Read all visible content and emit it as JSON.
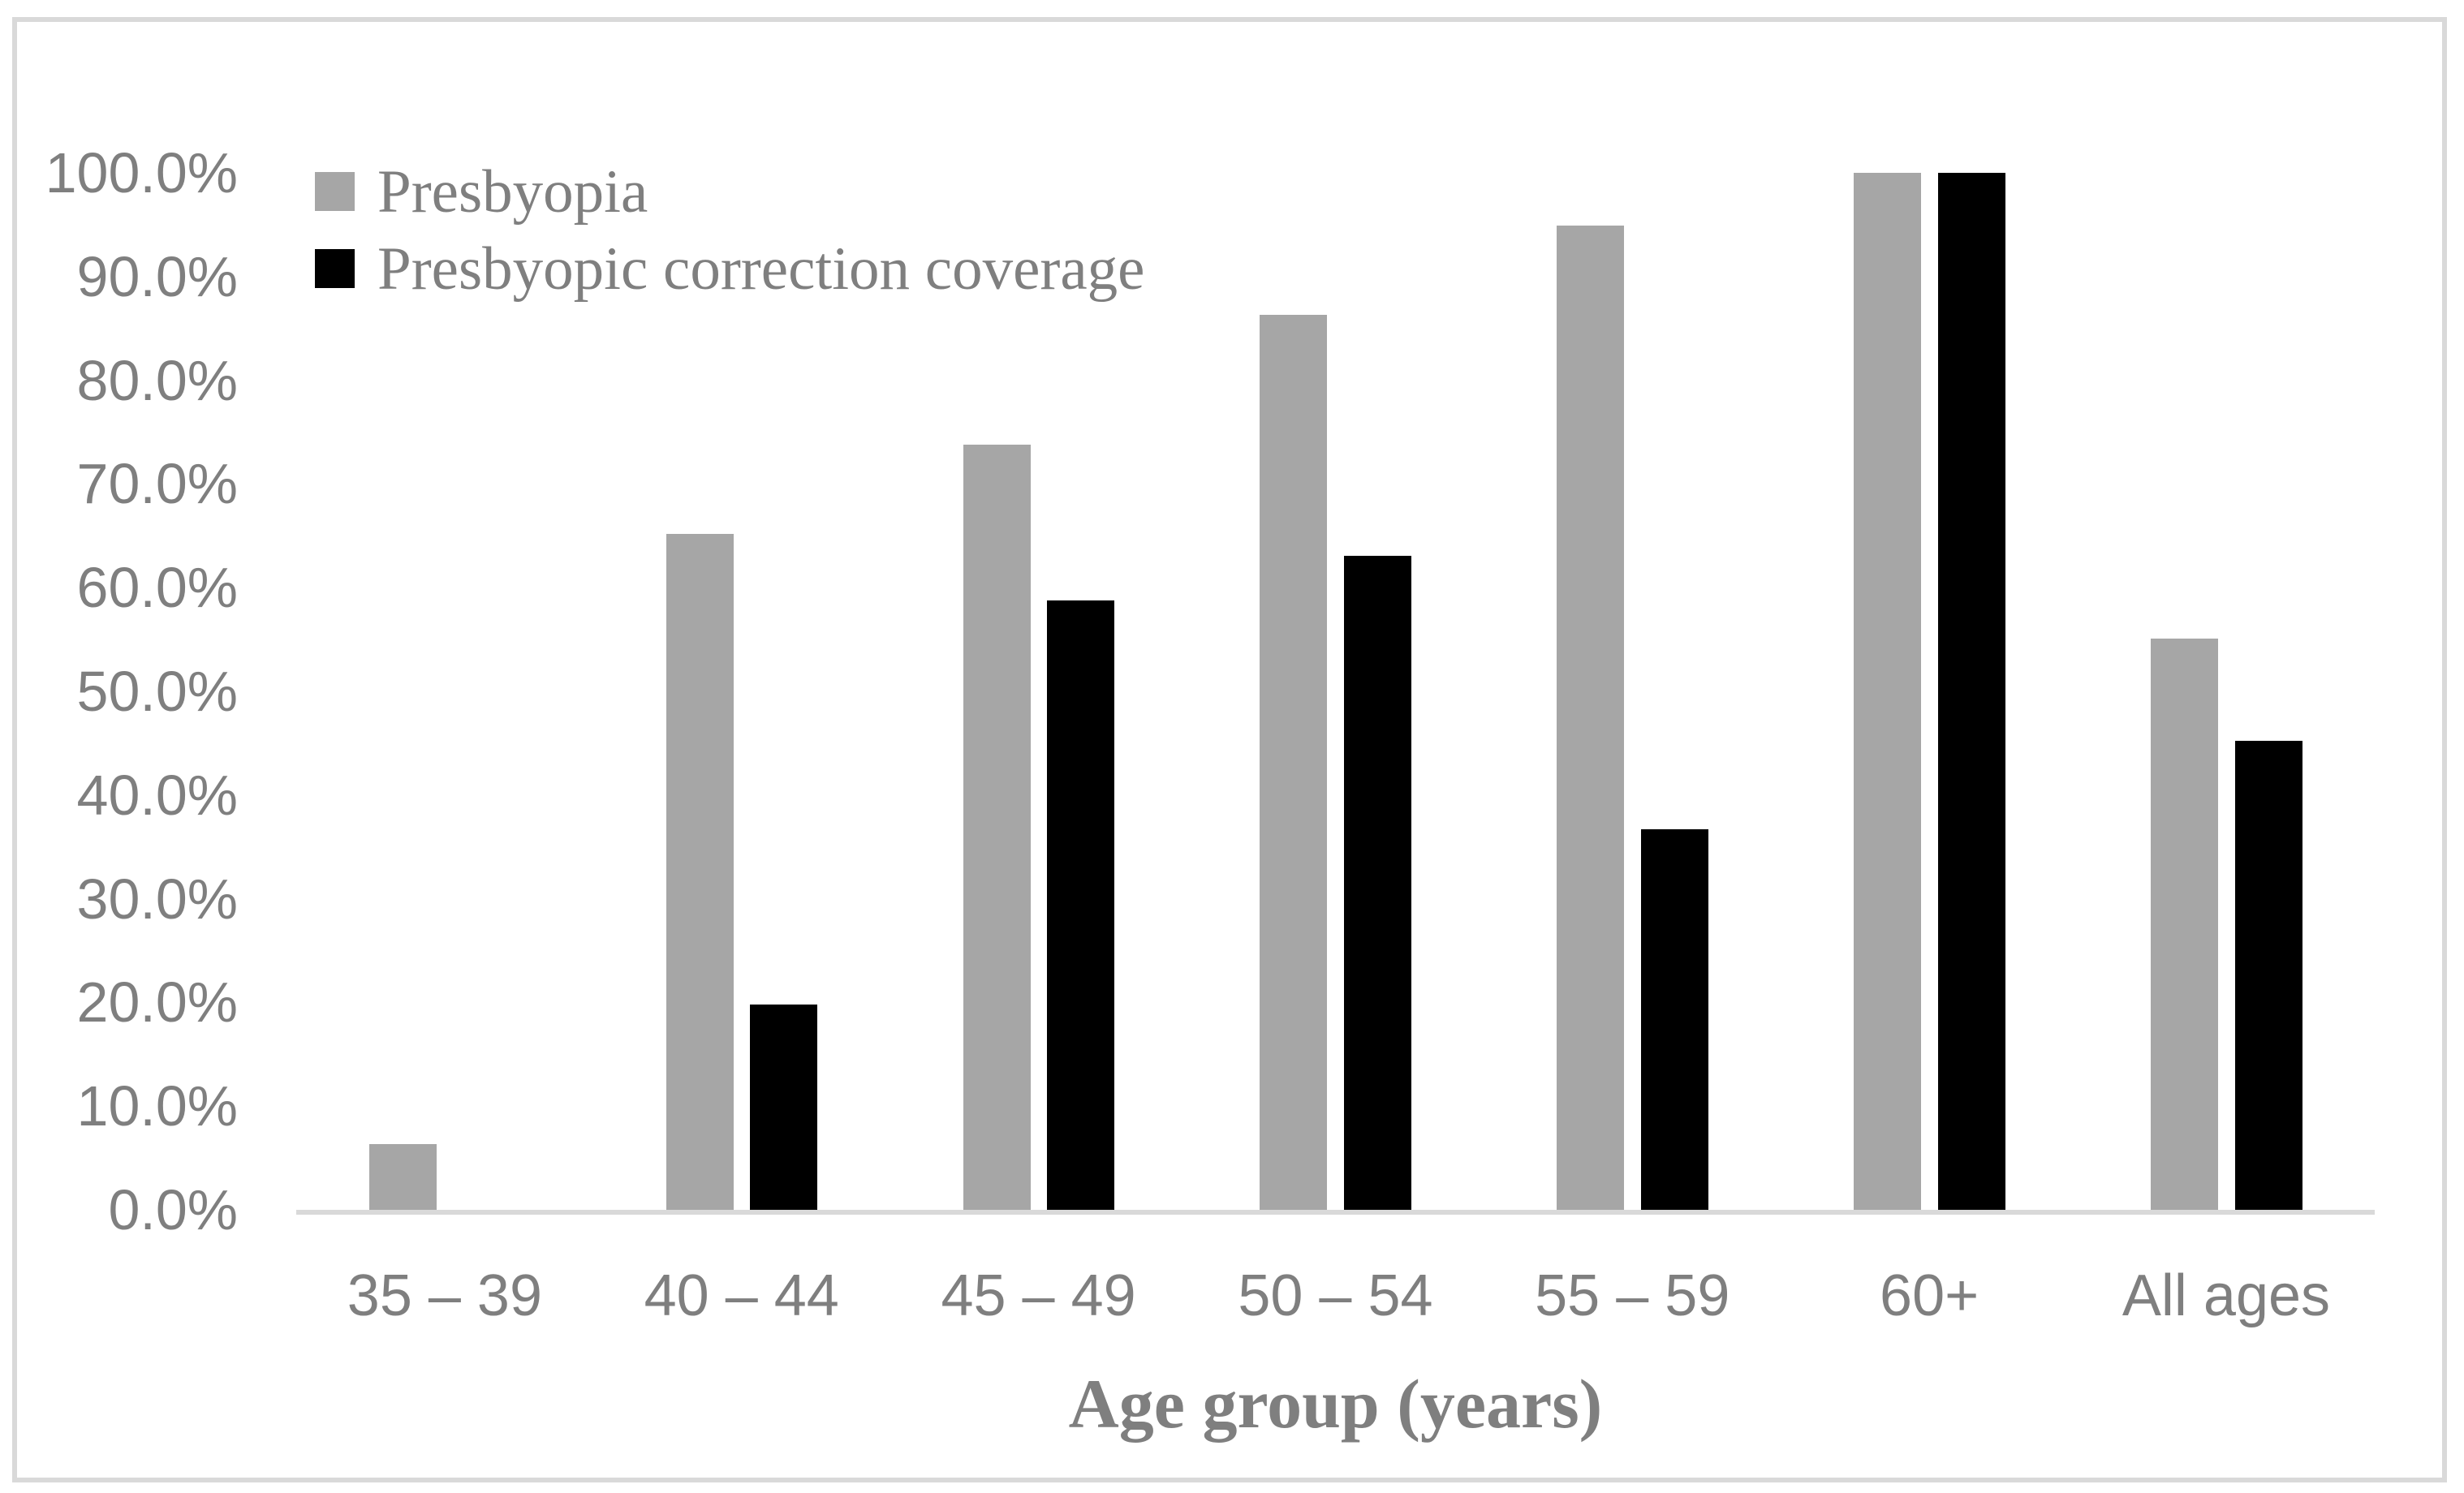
{
  "chart_data": {
    "type": "bar",
    "title": "",
    "xlabel": "Age group (years)",
    "ylabel": "",
    "categories": [
      "35 – 39",
      "40 – 44",
      "45 – 49",
      "50 – 54",
      "55 – 59",
      "60+",
      "All ages"
    ],
    "series": [
      {
        "name": "Presbyopia",
        "color": "#a6a6a6",
        "values": [
          6.3,
          65.2,
          73.8,
          86.3,
          94.9,
          100,
          55.1
        ]
      },
      {
        "name": "Presbyopic correction coverage",
        "color": "#000000",
        "values": [
          0,
          19.8,
          58.8,
          63.1,
          36.7,
          100,
          45.2
        ]
      }
    ],
    "ylim": [
      0,
      100
    ],
    "ytick_step": 10,
    "ytick_labels": [
      "0.0%",
      "10.0%",
      "20.0%",
      "30.0%",
      "40.0%",
      "50.0%",
      "60.0%",
      "70.0%",
      "80.0%",
      "90.0%",
      "100.0%"
    ],
    "grid": false,
    "legend_position": "top-left"
  },
  "colors": {
    "bar_gray": "#a6a6a6",
    "bar_black": "#000000",
    "axis_line": "#d9d9d9",
    "frame_border": "#d9d9d9",
    "label_text": "#7f7f7f"
  }
}
